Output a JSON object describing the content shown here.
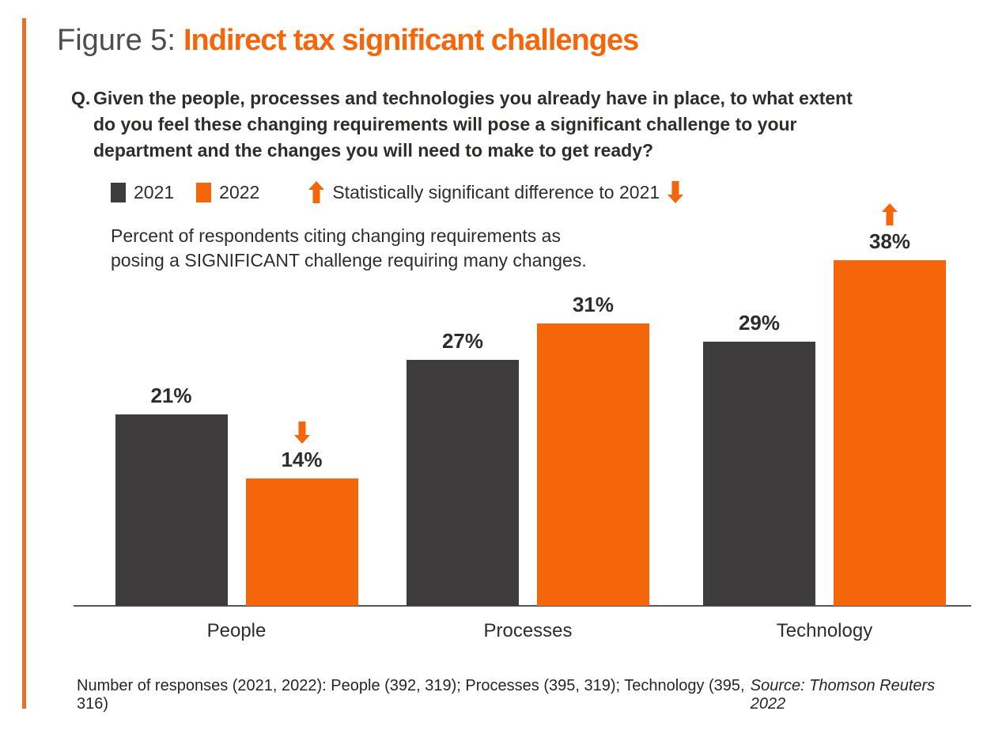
{
  "colors": {
    "accent_orange": "#F5660A",
    "bar_2021": "#3E3C3D",
    "text_dark": "#2E2D2C"
  },
  "title": {
    "prefix": "Figure 5:",
    "main": "Indirect tax significant challenges"
  },
  "question": {
    "marker": "Q.",
    "lines": [
      "Given the people, processes and technologies you already have in place, to what extent",
      "do you feel these changing requirements will pose a significant challenge to your",
      "department and the changes you will need to make to get ready?"
    ]
  },
  "legend": {
    "items": [
      {
        "label": "2021",
        "color": "#3E3C3D"
      },
      {
        "label": "2022",
        "color": "#F5660A"
      }
    ],
    "significance_text": "Statistically significant difference to 2021"
  },
  "subtitle_lines": [
    "Percent of respondents citing changing requirements as",
    "posing a SIGNIFICANT challenge requiring many changes."
  ],
  "chart_data": {
    "type": "bar",
    "title": "Figure 5: Indirect tax significant challenges",
    "subtitle": "Percent of respondents citing changing requirements as posing a SIGNIFICANT challenge requiring many changes.",
    "categories": [
      "People",
      "Processes",
      "Technology"
    ],
    "series": [
      {
        "name": "2021",
        "color": "#3E3C3D",
        "values": [
          21,
          27,
          29
        ]
      },
      {
        "name": "2022",
        "color": "#F5660A",
        "values": [
          14,
          31,
          38
        ]
      }
    ],
    "value_suffix": "%",
    "ylim": [
      0,
      40
    ],
    "grid": false,
    "legend_position": "top",
    "annotations": [
      {
        "category": "People",
        "series": "2022",
        "direction": "down",
        "meaning": "Statistically significant decrease vs 2021"
      },
      {
        "category": "Technology",
        "series": "2022",
        "direction": "up",
        "meaning": "Statistically significant increase vs 2021"
      }
    ]
  },
  "footer": {
    "responses": "Number of responses (2021, 2022): People (392, 319); Processes (395, 319); Technology (395, 316)",
    "source": "Source: Thomson Reuters 2022"
  }
}
